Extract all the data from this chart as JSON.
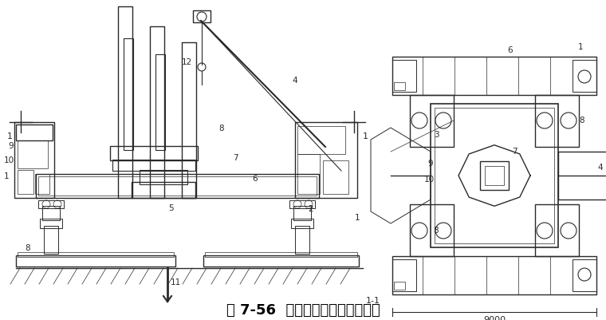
{
  "caption": "图 7-56  全液压式静力压桩机压桩",
  "caption_fontsize": 13,
  "bg_color": "#ffffff",
  "fig_width": 7.6,
  "fig_height": 4.01,
  "lc": "#2a2a2a",
  "lw": 0.7
}
